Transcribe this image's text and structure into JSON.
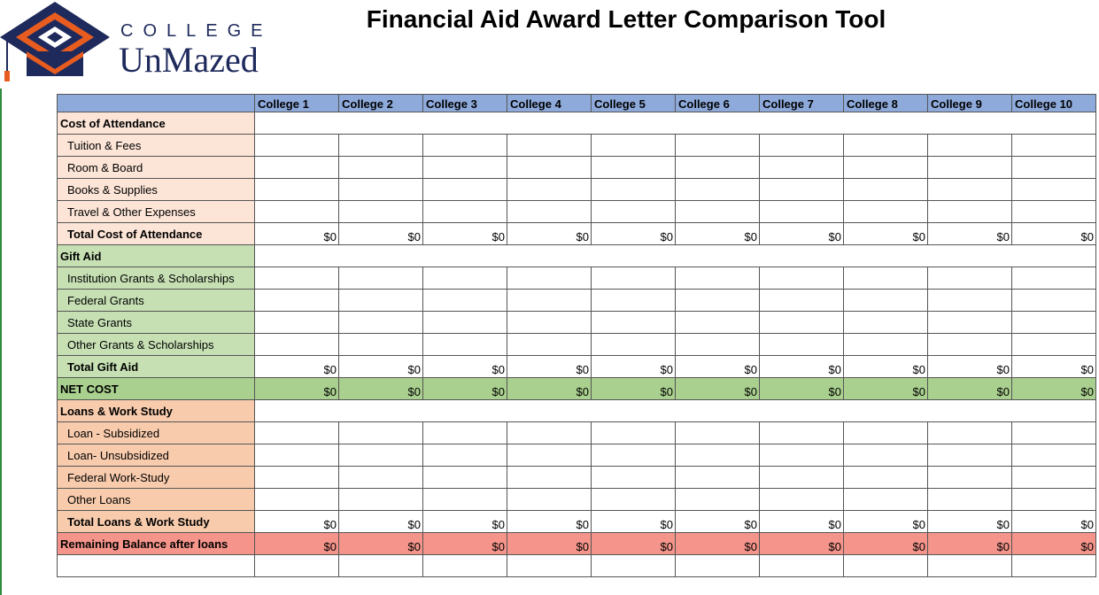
{
  "logo": {
    "top": "COLLEGE",
    "name": "UnMazed"
  },
  "title": "Financial Aid Award Letter Comparison Tool",
  "table": {
    "columns": [
      "College 1",
      "College 2",
      "College 3",
      "College 4",
      "College 5",
      "College 6",
      "College 7",
      "College 8",
      "College 9",
      "College 10"
    ],
    "cost": {
      "title": "Cost of Attendance",
      "items": [
        "Tuition & Fees",
        "Room & Board",
        "Books & Supplies",
        "Travel & Other Expenses"
      ],
      "total": {
        "label": "Total Cost of Attendance",
        "values": [
          "$0",
          "$0",
          "$0",
          "$0",
          "$0",
          "$0",
          "$0",
          "$0",
          "$0",
          "$0"
        ]
      }
    },
    "gift": {
      "title": "Gift Aid",
      "items": [
        "Institution Grants & Scholarships",
        "Federal Grants",
        "State Grants",
        "Other Grants & Scholarships"
      ],
      "total": {
        "label": "Total Gift Aid",
        "values": [
          "$0",
          "$0",
          "$0",
          "$0",
          "$0",
          "$0",
          "$0",
          "$0",
          "$0",
          "$0"
        ]
      }
    },
    "net_cost": {
      "label": "NET COST",
      "values": [
        "$0",
        "$0",
        "$0",
        "$0",
        "$0",
        "$0",
        "$0",
        "$0",
        "$0",
        "$0"
      ]
    },
    "loans": {
      "title": "Loans & Work Study",
      "items": [
        "Loan - Subsidized",
        "Loan- Unsubsidized",
        "Federal Work-Study",
        "Other Loans"
      ],
      "total": {
        "label": "Total Loans & Work Study",
        "values": [
          "$0",
          "$0",
          "$0",
          "$0",
          "$0",
          "$0",
          "$0",
          "$0",
          "$0",
          "$0"
        ]
      }
    },
    "remaining": {
      "label": "Remaining Balance after loans",
      "values": [
        "$0",
        "$0",
        "$0",
        "$0",
        "$0",
        "$0",
        "$0",
        "$0",
        "$0",
        "$0"
      ]
    }
  }
}
